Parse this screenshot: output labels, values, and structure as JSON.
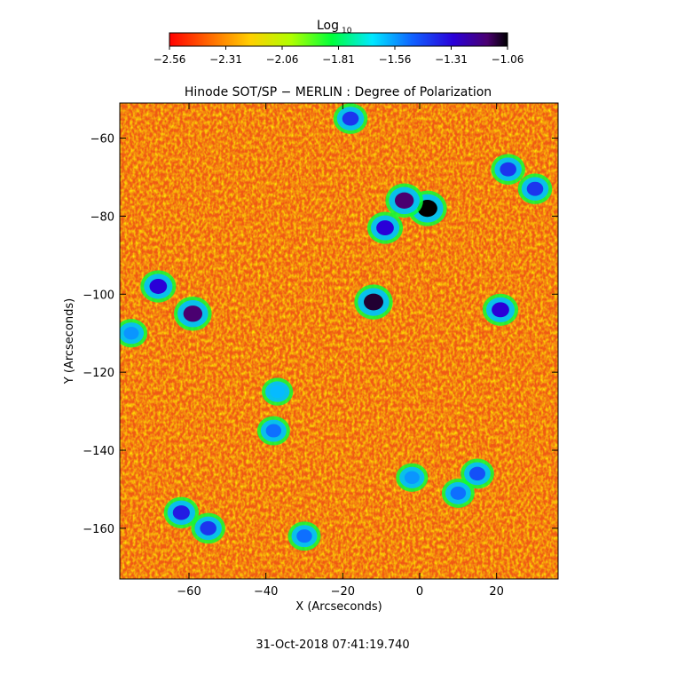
{
  "chart_data": {
    "type": "heatmap",
    "title": "Hinode SOT/SP − MERLIN : Degree of Polarization",
    "xlabel": "X (Arcseconds)",
    "ylabel": "Y (Arcseconds)",
    "xlim": [
      -78,
      36
    ],
    "ylim": [
      -173,
      -51
    ],
    "xticks": [
      -60,
      -40,
      -20,
      0,
      20
    ],
    "yticks": [
      -60,
      -80,
      -100,
      -120,
      -140,
      -160
    ],
    "grid": false,
    "colorbar": {
      "label_base": "Log",
      "label_sub": "10",
      "min": -2.56,
      "max": -1.06,
      "ticks": [
        "−2.56",
        "−2.31",
        "−2.06",
        "−1.81",
        "−1.56",
        "−1.31",
        "−1.06"
      ],
      "colormap": "rainbow (red → orange → yellow → green → cyan → blue → purple → black)"
    },
    "field_note": "background degree of polarization mostly near -2.4 (red/orange); strong polarization patches near -1.1 to -1.3",
    "patches": [
      {
        "x": 2,
        "y": -78,
        "value": -1.06
      },
      {
        "x": -4,
        "y": -76,
        "value": -1.15
      },
      {
        "x": -9,
        "y": -83,
        "value": -1.3
      },
      {
        "x": -12,
        "y": -102,
        "value": -1.1
      },
      {
        "x": -59,
        "y": -105,
        "value": -1.15
      },
      {
        "x": -68,
        "y": -98,
        "value": -1.3
      },
      {
        "x": 21,
        "y": -104,
        "value": -1.3
      },
      {
        "x": 23,
        "y": -68,
        "value": -1.4
      },
      {
        "x": 30,
        "y": -73,
        "value": -1.4
      },
      {
        "x": -18,
        "y": -55,
        "value": -1.4
      },
      {
        "x": -38,
        "y": -135,
        "value": -1.5
      },
      {
        "x": -37,
        "y": -125,
        "value": -1.6
      },
      {
        "x": 15,
        "y": -146,
        "value": -1.45
      },
      {
        "x": 10,
        "y": -151,
        "value": -1.5
      },
      {
        "x": -2,
        "y": -147,
        "value": -1.55
      },
      {
        "x": -62,
        "y": -156,
        "value": -1.35
      },
      {
        "x": -55,
        "y": -160,
        "value": -1.4
      },
      {
        "x": -30,
        "y": -162,
        "value": -1.5
      },
      {
        "x": -75,
        "y": -110,
        "value": -1.55
      }
    ]
  },
  "footer": {
    "timestamp": "31-Oct-2018 07:41:19.740"
  }
}
